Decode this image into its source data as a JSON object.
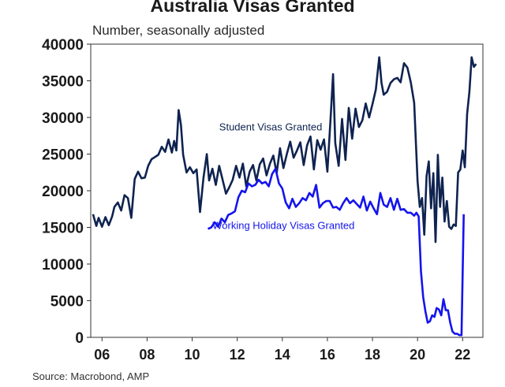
{
  "header": {
    "title": "Australia Visas Granted",
    "subtitle": "Number, seasonally adjusted"
  },
  "footer": {
    "source": "Source: Macrobond, AMP"
  },
  "colors": {
    "student": "#0f2350",
    "working_holiday": "#1414ee",
    "axis": "#333333"
  },
  "chart_data": {
    "type": "line",
    "title": "Australia Visas Granted",
    "subtitle": "Number, seasonally adjusted",
    "xlim": [
      2005.5,
      2022.9
    ],
    "ylim": [
      0,
      40000
    ],
    "y_ticks": [
      0,
      5000,
      10000,
      15000,
      20000,
      25000,
      30000,
      35000,
      40000
    ],
    "x_ticks": [
      {
        "value": 2006,
        "label": "06"
      },
      {
        "value": 2008,
        "label": "08"
      },
      {
        "value": 2010,
        "label": "10"
      },
      {
        "value": 2012,
        "label": "12"
      },
      {
        "value": 2014,
        "label": "14"
      },
      {
        "value": 2016,
        "label": "16"
      },
      {
        "value": 2018,
        "label": "18"
      },
      {
        "value": 2020,
        "label": "20"
      },
      {
        "value": 2022,
        "label": "22"
      }
    ],
    "grid": false,
    "annotations": [
      {
        "text": "Student Visas Granted",
        "x": 2011.2,
        "y": 28200,
        "series": "student"
      },
      {
        "text": "Working Holiday Visas Granted",
        "x": 2010.9,
        "y": 14800,
        "series": "working_holiday"
      }
    ],
    "series": [
      {
        "name": "Student Visas Granted",
        "x": [
          2005.6,
          2005.75,
          2005.85,
          2006.0,
          2006.15,
          2006.3,
          2006.45,
          2006.55,
          2006.7,
          2006.85,
          2007.0,
          2007.15,
          2007.3,
          2007.45,
          2007.6,
          2007.75,
          2007.9,
          2008.05,
          2008.2,
          2008.35,
          2008.5,
          2008.65,
          2008.8,
          2008.95,
          2009.1,
          2009.2,
          2009.3,
          2009.4,
          2009.5,
          2009.6,
          2009.75,
          2009.9,
          2010.05,
          2010.2,
          2010.35,
          2010.5,
          2010.65,
          2010.75,
          2010.9,
          2011.05,
          2011.2,
          2011.35,
          2011.5,
          2011.65,
          2011.8,
          2011.95,
          2012.1,
          2012.25,
          2012.4,
          2012.55,
          2012.7,
          2012.85,
          2013.0,
          2013.15,
          2013.3,
          2013.45,
          2013.6,
          2013.75,
          2013.9,
          2014.05,
          2014.2,
          2014.35,
          2014.5,
          2014.65,
          2014.8,
          2014.95,
          2015.1,
          2015.25,
          2015.4,
          2015.55,
          2015.7,
          2015.85,
          2016.0,
          2016.15,
          2016.25,
          2016.35,
          2016.5,
          2016.65,
          2016.8,
          2016.95,
          2017.1,
          2017.25,
          2017.4,
          2017.55,
          2017.7,
          2017.85,
          2018.0,
          2018.15,
          2018.3,
          2018.4,
          2018.5,
          2018.65,
          2018.8,
          2018.95,
          2019.1,
          2019.25,
          2019.4,
          2019.55,
          2019.7,
          2019.85,
          2020.0,
          2020.1,
          2020.2,
          2020.3,
          2020.4,
          2020.5,
          2020.6,
          2020.7,
          2020.8,
          2020.9,
          2021.0,
          2021.1,
          2021.2,
          2021.3,
          2021.4,
          2021.5,
          2021.6,
          2021.7,
          2021.8,
          2021.9,
          2022.0,
          2022.1,
          2022.2,
          2022.3,
          2022.4,
          2022.5,
          2022.6
        ],
        "values": [
          16800,
          15200,
          16300,
          15100,
          16400,
          15300,
          16500,
          17800,
          18400,
          17300,
          19400,
          19000,
          16300,
          21600,
          22600,
          21700,
          21800,
          23400,
          24300,
          24600,
          24900,
          26000,
          25300,
          27000,
          25200,
          26800,
          25500,
          31000,
          29000,
          24900,
          22500,
          23200,
          22400,
          22900,
          17100,
          21700,
          25000,
          21400,
          23000,
          20800,
          23400,
          21500,
          19600,
          20500,
          21500,
          23400,
          21800,
          23700,
          20600,
          22600,
          23500,
          21400,
          23600,
          24400,
          22100,
          23700,
          24800,
          22400,
          25800,
          23100,
          25000,
          26700,
          24500,
          25500,
          26600,
          23500,
          26200,
          27400,
          22900,
          26900,
          25600,
          27000,
          22600,
          30300,
          35900,
          26500,
          23400,
          29800,
          24200,
          31300,
          27100,
          31200,
          28700,
          29600,
          31900,
          30000,
          31800,
          33800,
          38200,
          34700,
          33100,
          33500,
          34700,
          35200,
          35400,
          34800,
          37400,
          36800,
          34800,
          32000,
          21300,
          17800,
          19000,
          14000,
          22000,
          24000,
          17600,
          22400,
          13000,
          24900,
          17800,
          21800,
          15800,
          18600,
          15100,
          14800,
          15400,
          15200,
          22500,
          22900,
          25500,
          23200,
          30500,
          33500,
          38200,
          36900,
          37300
        ]
      },
      {
        "name": "Working Holiday Visas Granted",
        "x": [
          2010.7,
          2010.85,
          2011.0,
          2011.15,
          2011.3,
          2011.45,
          2011.6,
          2011.75,
          2011.9,
          2012.05,
          2012.2,
          2012.35,
          2012.5,
          2012.65,
          2012.8,
          2012.95,
          2013.1,
          2013.25,
          2013.4,
          2013.55,
          2013.7,
          2013.85,
          2014.0,
          2014.15,
          2014.3,
          2014.45,
          2014.6,
          2014.75,
          2014.9,
          2015.05,
          2015.2,
          2015.35,
          2015.5,
          2015.65,
          2015.8,
          2015.95,
          2016.1,
          2016.25,
          2016.4,
          2016.55,
          2016.7,
          2016.85,
          2017.0,
          2017.15,
          2017.3,
          2017.45,
          2017.6,
          2017.75,
          2017.9,
          2018.05,
          2018.2,
          2018.35,
          2018.5,
          2018.65,
          2018.8,
          2018.95,
          2019.1,
          2019.25,
          2019.4,
          2019.55,
          2019.7,
          2019.85,
          2019.95,
          2020.05,
          2020.15,
          2020.25,
          2020.35,
          2020.45,
          2020.55,
          2020.65,
          2020.75,
          2020.85,
          2020.95,
          2021.05,
          2021.15,
          2021.25,
          2021.35,
          2021.45,
          2021.55,
          2021.65,
          2021.75,
          2021.85,
          2021.95,
          2022.05
        ],
        "values": [
          14800,
          15000,
          15700,
          15100,
          16200,
          15700,
          16700,
          16900,
          17200,
          19100,
          20000,
          19800,
          21000,
          20600,
          20800,
          21500,
          21000,
          21200,
          20600,
          22300,
          23000,
          21000,
          20300,
          18400,
          17600,
          18900,
          17800,
          18300,
          19000,
          18700,
          19700,
          19200,
          20800,
          17700,
          18300,
          18600,
          18600,
          17700,
          17800,
          17400,
          18300,
          19000,
          18300,
          18700,
          18200,
          17700,
          19200,
          17300,
          18500,
          17600,
          16800,
          19700,
          18100,
          17800,
          19000,
          17400,
          18900,
          17400,
          17500,
          17000,
          17000,
          16600,
          17000,
          16500,
          9000,
          5500,
          3500,
          2000,
          2200,
          3000,
          2800,
          4000,
          3800,
          3000,
          5200,
          3700,
          3700,
          2000,
          800,
          500,
          500,
          300,
          300,
          16800
        ]
      }
    ]
  }
}
